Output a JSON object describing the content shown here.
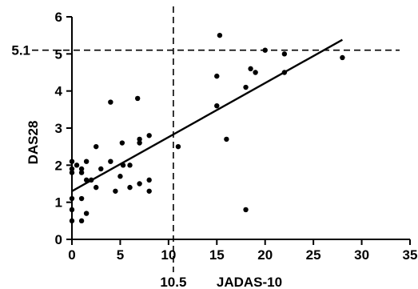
{
  "chart_data": {
    "type": "scatter",
    "title": "",
    "xlabel": "JADAS-10",
    "ylabel": "DAS28",
    "xlim": [
      0,
      35
    ],
    "ylim": [
      0,
      6
    ],
    "x_ticks": [
      0,
      5,
      10,
      15,
      20,
      25,
      30,
      35
    ],
    "y_ticks": [
      0,
      1,
      2,
      3,
      4,
      5,
      6
    ],
    "grid": false,
    "reference_lines": {
      "vertical": {
        "value": 10.5,
        "label": "10.5",
        "style": "dashed"
      },
      "horizontal": {
        "value": 5.1,
        "label": "5.1",
        "style": "dashed"
      }
    },
    "trend_line": {
      "x": [
        0,
        28
      ],
      "y": [
        1.3,
        5.38
      ]
    },
    "points": [
      {
        "x": 0,
        "y": 0.5
      },
      {
        "x": 0,
        "y": 0.8
      },
      {
        "x": 0,
        "y": 1.1
      },
      {
        "x": 0,
        "y": 1.8
      },
      {
        "x": 0,
        "y": 1.9
      },
      {
        "x": 0,
        "y": 2.1
      },
      {
        "x": 0.5,
        "y": 2.0
      },
      {
        "x": 1,
        "y": 0.5
      },
      {
        "x": 1,
        "y": 1.1
      },
      {
        "x": 1,
        "y": 1.8
      },
      {
        "x": 1,
        "y": 1.9
      },
      {
        "x": 1.5,
        "y": 0.7
      },
      {
        "x": 1.5,
        "y": 1.6
      },
      {
        "x": 1.5,
        "y": 2.1
      },
      {
        "x": 2,
        "y": 1.6
      },
      {
        "x": 2.5,
        "y": 2.5
      },
      {
        "x": 2.5,
        "y": 1.4
      },
      {
        "x": 3,
        "y": 1.9
      },
      {
        "x": 4,
        "y": 3.7
      },
      {
        "x": 4,
        "y": 2.1
      },
      {
        "x": 4.5,
        "y": 1.3
      },
      {
        "x": 5,
        "y": 1.7
      },
      {
        "x": 5.2,
        "y": 2.6
      },
      {
        "x": 5.3,
        "y": 2.0
      },
      {
        "x": 6,
        "y": 2.0
      },
      {
        "x": 6,
        "y": 1.4
      },
      {
        "x": 6.8,
        "y": 3.8
      },
      {
        "x": 7,
        "y": 2.7
      },
      {
        "x": 7,
        "y": 2.6
      },
      {
        "x": 7,
        "y": 1.5
      },
      {
        "x": 8,
        "y": 2.8
      },
      {
        "x": 8,
        "y": 1.6
      },
      {
        "x": 8,
        "y": 1.3
      },
      {
        "x": 11,
        "y": 2.5
      },
      {
        "x": 15,
        "y": 4.4
      },
      {
        "x": 15,
        "y": 3.6
      },
      {
        "x": 15.3,
        "y": 5.5
      },
      {
        "x": 16,
        "y": 2.7
      },
      {
        "x": 18,
        "y": 4.1
      },
      {
        "x": 18,
        "y": 0.8
      },
      {
        "x": 18.5,
        "y": 4.6
      },
      {
        "x": 19,
        "y": 4.5
      },
      {
        "x": 20,
        "y": 5.1
      },
      {
        "x": 22,
        "y": 5.0
      },
      {
        "x": 22,
        "y": 4.5
      },
      {
        "x": 28,
        "y": 4.9
      }
    ]
  }
}
